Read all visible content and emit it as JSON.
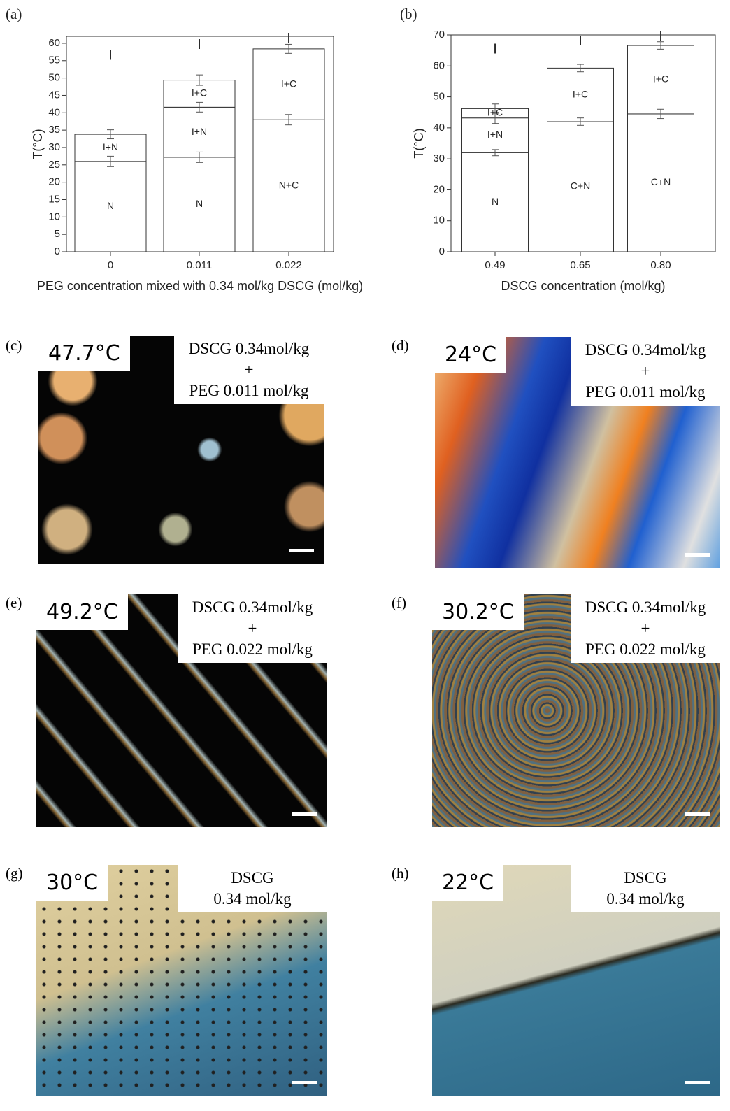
{
  "chart_data": [
    {
      "type": "bar",
      "panel": "(a)",
      "y_label": "T(°C)",
      "x_label": "PEG concentration mixed with 0.34 mol/kg DSCG (mol/kg)",
      "categories": [
        "0",
        "0.011",
        "0.022"
      ],
      "stacks": [
        {
          "top_label": "I",
          "segments": [
            {
              "label": "N",
              "value": 26,
              "error": 1.5
            },
            {
              "label": "I+N",
              "value": 7.8,
              "error": 1.3
            }
          ]
        },
        {
          "top_label": "I",
          "segments": [
            {
              "label": "N",
              "value": 27.2,
              "error": 1.5
            },
            {
              "label": "I+N",
              "value": 14.4,
              "error": 1.4
            },
            {
              "label": "I+C",
              "value": 7.8,
              "error": 1.5
            }
          ]
        },
        {
          "top_label": "I",
          "segments": [
            {
              "label": "N+C",
              "value": 38,
              "error": 1.5
            },
            {
              "label": "I+C",
              "value": 20.4,
              "error": 1.3
            }
          ]
        }
      ],
      "ylim": [
        0,
        62
      ],
      "yticks": [
        0,
        5,
        10,
        15,
        20,
        25,
        30,
        35,
        40,
        45,
        50,
        55,
        60
      ]
    },
    {
      "type": "bar",
      "panel": "(b)",
      "y_label": "T(°C)",
      "x_label": "DSCG concentration (mol/kg)",
      "categories": [
        "0.49",
        "0.65",
        "0.80"
      ],
      "stacks": [
        {
          "top_label": "I",
          "segments": [
            {
              "label": "N",
              "value": 32,
              "error": 1
            },
            {
              "label": "I+N",
              "value": 11.2,
              "error": 1.8
            },
            {
              "label": "I+C",
              "value": 3,
              "error": 1.5
            }
          ]
        },
        {
          "top_label": "I",
          "segments": [
            {
              "label": "C+N",
              "value": 42,
              "error": 1.2
            },
            {
              "label": "I+C",
              "value": 17.3,
              "error": 1.2
            }
          ]
        },
        {
          "top_label": "I",
          "segments": [
            {
              "label": "C+N",
              "value": 44.5,
              "error": 1.5
            },
            {
              "label": "I+C",
              "value": 22.1,
              "error": 1.2
            }
          ]
        }
      ],
      "ylim": [
        0,
        70
      ],
      "yticks": [
        0,
        10,
        20,
        30,
        40,
        50,
        60,
        70
      ]
    }
  ],
  "panels": [
    {
      "letter": "(c)",
      "temperature": "47.7°C",
      "composition": [
        "DSCG 0.34mol/kg",
        "+",
        "PEG 0.011 mol/kg"
      ]
    },
    {
      "letter": "(d)",
      "temperature": "24°C",
      "composition": [
        "DSCG 0.34mol/kg",
        "+",
        "PEG 0.011 mol/kg"
      ]
    },
    {
      "letter": "(e)",
      "temperature": "49.2°C",
      "composition": [
        "DSCG 0.34mol/kg",
        "+",
        "PEG 0.022 mol/kg"
      ]
    },
    {
      "letter": "(f)",
      "temperature": "30.2°C",
      "composition": [
        "DSCG 0.34mol/kg",
        "+",
        "PEG 0.022 mol/kg"
      ]
    },
    {
      "letter": "(g)",
      "temperature": "30°C",
      "composition": [
        "DSCG",
        "0.34 mol/kg"
      ]
    },
    {
      "letter": "(h)",
      "temperature": "22°C",
      "composition": [
        "DSCG",
        "0.34 mol/kg"
      ]
    }
  ]
}
